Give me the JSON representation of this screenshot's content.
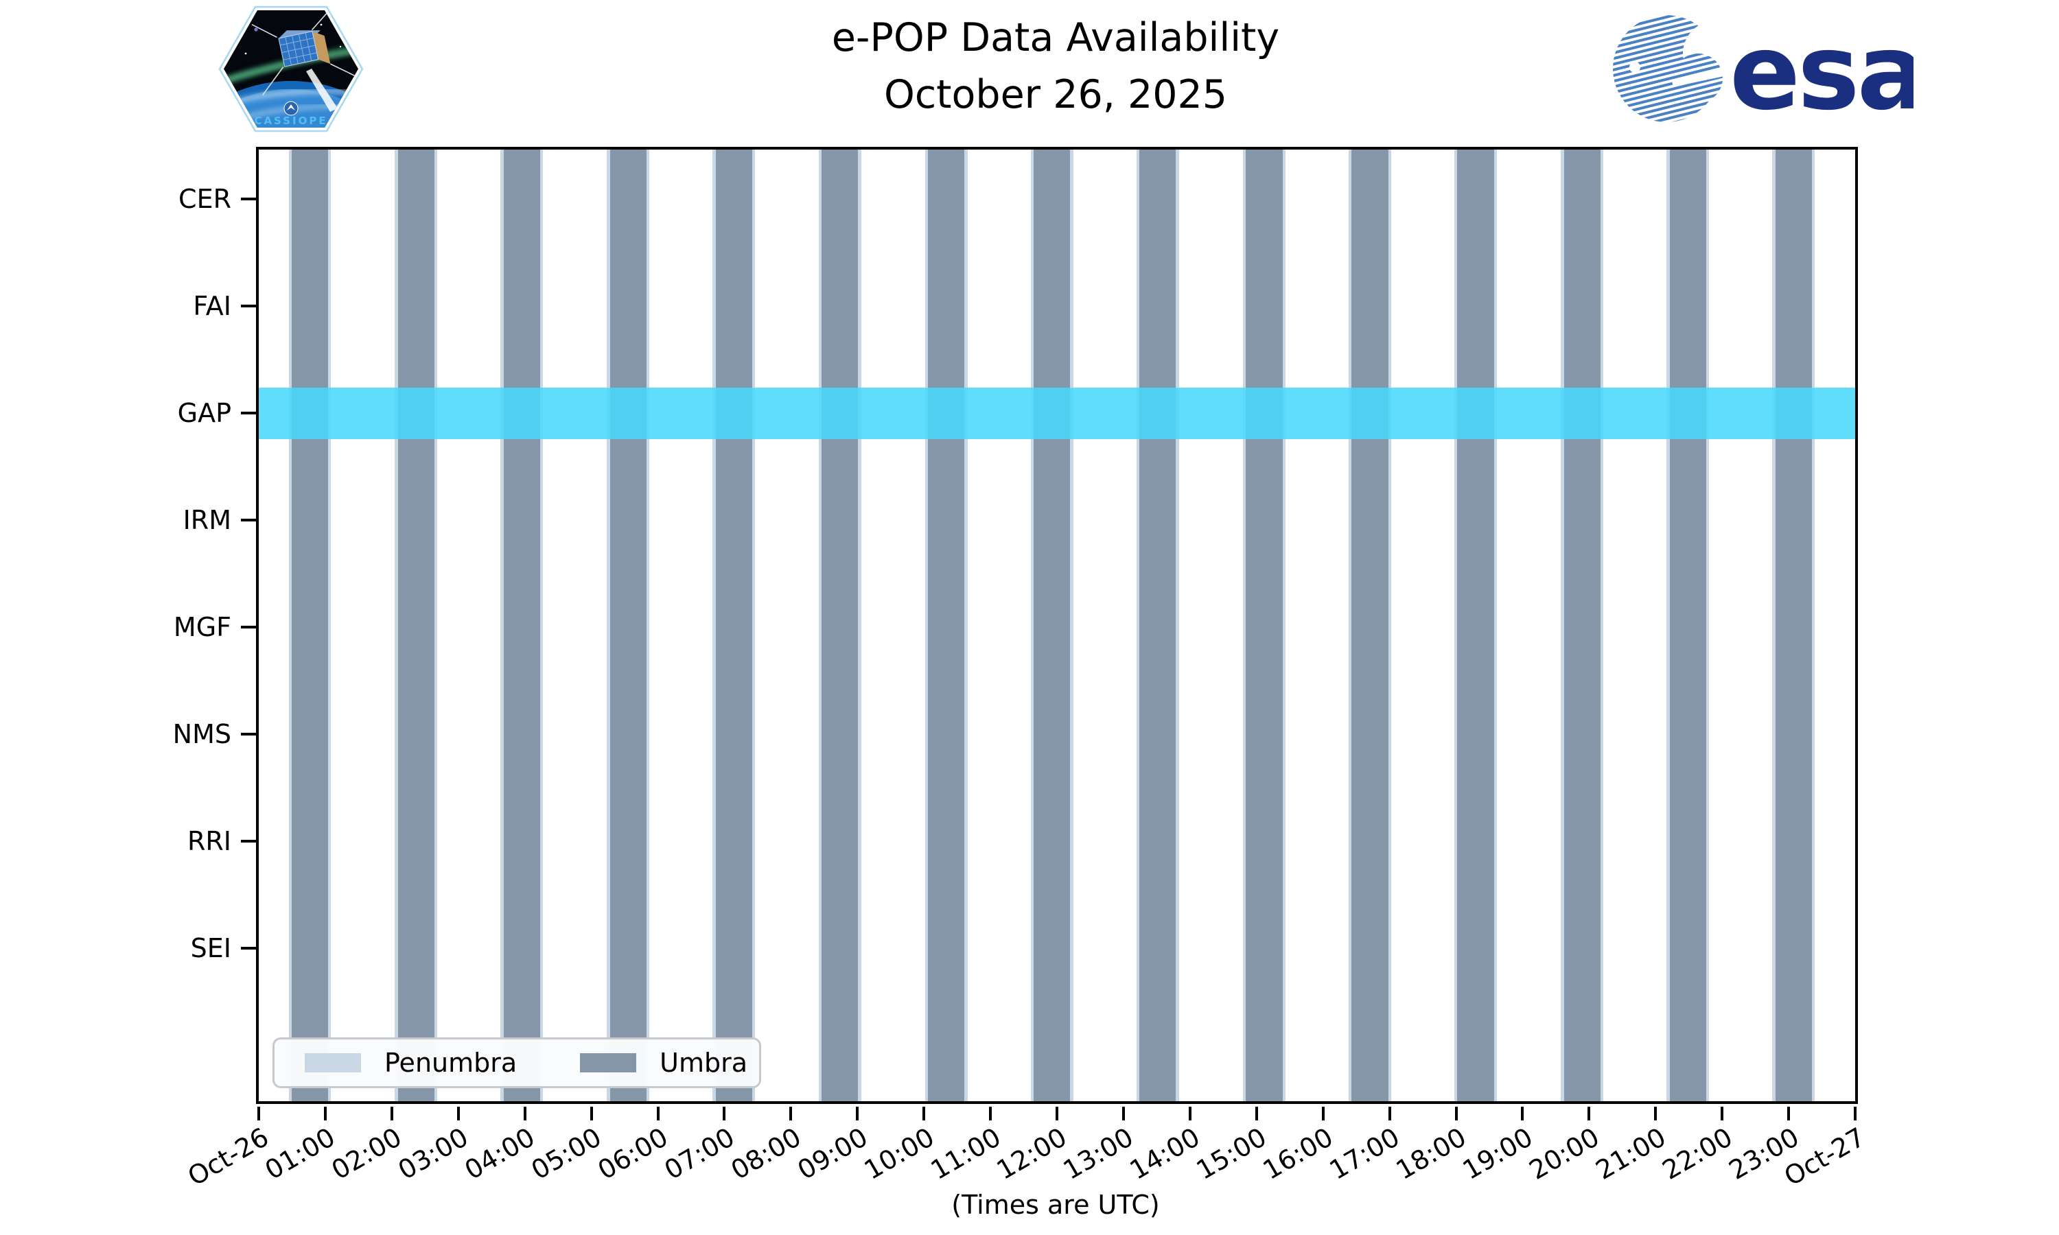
{
  "header": {
    "cassiope_patch_label": "CASSIOPE",
    "title_line1": "e-POP Data Availability",
    "title_line2": "October 26, 2025",
    "esa_wordmark": "esa"
  },
  "chart_data": {
    "type": "availability-timeline",
    "title": "e-POP Data Availability",
    "subtitle": "October 26, 2025",
    "xlabel": "(Times are UTC)",
    "x_axis": {
      "hours_span": 24,
      "tick_labels": [
        "Oct-26",
        "01:00",
        "02:00",
        "03:00",
        "04:00",
        "05:00",
        "06:00",
        "07:00",
        "08:00",
        "09:00",
        "10:00",
        "11:00",
        "12:00",
        "13:00",
        "14:00",
        "15:00",
        "16:00",
        "17:00",
        "18:00",
        "19:00",
        "20:00",
        "21:00",
        "22:00",
        "23:00",
        "Oct-27"
      ]
    },
    "instruments": [
      "CER",
      "FAI",
      "GAP",
      "IRM",
      "MGF",
      "NMS",
      "RRI",
      "SEI"
    ],
    "availability": [
      {
        "instrument": "GAP",
        "intervals_h": [
          [
            0,
            24
          ]
        ],
        "color": "rgba(74,216,252,0.87)"
      }
    ],
    "umbra_intervals_h": [
      [
        0.5,
        1.04
      ],
      [
        2.09,
        2.64
      ],
      [
        3.68,
        4.23
      ],
      [
        5.28,
        5.83
      ],
      [
        6.87,
        7.42
      ],
      [
        8.46,
        9.01
      ],
      [
        10.06,
        10.61
      ],
      [
        11.65,
        12.2
      ],
      [
        13.24,
        13.79
      ],
      [
        14.84,
        15.39
      ],
      [
        16.43,
        16.98
      ],
      [
        18.02,
        18.57
      ],
      [
        19.62,
        20.17
      ],
      [
        21.21,
        21.76
      ],
      [
        22.8,
        23.35
      ]
    ],
    "penumbra_margin_h": 0.045,
    "legend": [
      {
        "label": "Penumbra",
        "color": "#c9d7e4"
      },
      {
        "label": "Umbra",
        "color": "#8696a9"
      }
    ],
    "layout": {
      "grid": false,
      "legend_position": "lower left inside plot"
    },
    "colors": {
      "umbra": "#8696a9",
      "penumbra": "#c9d7e4",
      "gap_band": "rgba(74,216,252,0.87)",
      "axis": "#000000",
      "esa_text_blue": "#1b2f80",
      "esa_stripe_blue": "#4a81c4",
      "patch_text_blue": "#55bdf0"
    }
  }
}
